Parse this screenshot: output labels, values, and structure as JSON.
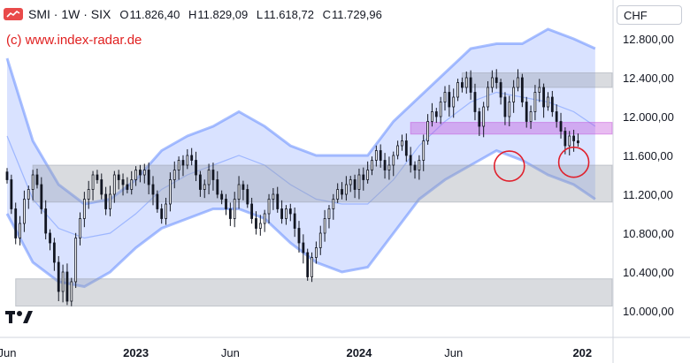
{
  "header": {
    "symbol": "SMI · 1W · SIX",
    "ohlc": [
      {
        "k": "O",
        "v": "11.826,40"
      },
      {
        "k": "H",
        "v": "11.829,09"
      },
      {
        "k": "L",
        "v": "11.618,72"
      },
      {
        "k": "C",
        "v": "11.729,96"
      }
    ]
  },
  "watermark": "(c) www.index-radar.de",
  "currency": "CHF",
  "chart_data": {
    "type": "candlestick",
    "x_ticks": [
      {
        "label": "Jun",
        "t": 0
      },
      {
        "label": "2023",
        "t": 30
      },
      {
        "label": "Jun",
        "t": 52
      },
      {
        "label": "2024",
        "t": 82
      },
      {
        "label": "Jun",
        "t": 104
      },
      {
        "label": "202",
        "t": 134
      }
    ],
    "y_ticks": [
      {
        "label": "12.800,00",
        "v": 12800
      },
      {
        "label": "12.400,00",
        "v": 12400
      },
      {
        "label": "12.000,00",
        "v": 12000
      },
      {
        "label": "11.600,00",
        "v": 11600
      },
      {
        "label": "11.200,00",
        "v": 11200
      },
      {
        "label": "10.800,00",
        "v": 10800
      },
      {
        "label": "10.400,00",
        "v": 10400
      },
      {
        "label": "10.000,00",
        "v": 10000
      }
    ],
    "ylim": [
      9900,
      13050
    ],
    "zones": [
      {
        "from_t": 6,
        "to_t": 143,
        "low": 11120,
        "high": 11500,
        "color": "#9aa0aa"
      },
      {
        "from_t": 2,
        "to_t": 143,
        "low": 10050,
        "high": 10330,
        "color": "#9aa0aa"
      },
      {
        "from_t": 106,
        "to_t": 143,
        "low": 12300,
        "high": 12450,
        "color": "#9aa0aa"
      },
      {
        "from_t": 94,
        "to_t": 143,
        "low": 11820,
        "high": 11940,
        "color": "#c34fd9"
      }
    ],
    "circles": [
      {
        "t": 117,
        "v": 11490
      },
      {
        "t": 132,
        "v": 11530
      }
    ],
    "bands": {
      "t": [
        0,
        6,
        12,
        18,
        24,
        30,
        36,
        42,
        48,
        54,
        60,
        66,
        72,
        78,
        84,
        90,
        96,
        102,
        108,
        114,
        120,
        126,
        132,
        137
      ],
      "upper": [
        12600,
        11750,
        11300,
        11100,
        11150,
        11350,
        11650,
        11800,
        11900,
        12050,
        11900,
        11700,
        11600,
        11600,
        11600,
        11950,
        12200,
        12450,
        12700,
        12750,
        12750,
        12900,
        12800,
        12700
      ],
      "mid": [
        11800,
        11150,
        10850,
        10750,
        10800,
        11000,
        11250,
        11400,
        11500,
        11600,
        11500,
        11300,
        11150,
        11100,
        11100,
        11350,
        11700,
        11950,
        12150,
        12250,
        12200,
        12150,
        12050,
        11900
      ],
      "lower": [
        11000,
        10500,
        10300,
        10250,
        10400,
        10650,
        10850,
        10950,
        11050,
        11050,
        10950,
        10700,
        10500,
        10400,
        10450,
        10800,
        11150,
        11350,
        11500,
        11650,
        11550,
        11400,
        11300,
        11150
      ]
    },
    "closes": [
      11350,
      11050,
      10750,
      10900,
      11150,
      11250,
      11400,
      11300,
      11050,
      10800,
      10700,
      10500,
      10200,
      10400,
      10100,
      10300,
      10750,
      10950,
      11150,
      11250,
      11400,
      11350,
      11200,
      11050,
      11200,
      11400,
      11350,
      11300,
      11250,
      11350,
      11450,
      11400,
      11450,
      11300,
      11200,
      11050,
      10950,
      11100,
      11350,
      11450,
      11550,
      11500,
      11600,
      11550,
      11400,
      11250,
      11300,
      11450,
      11350,
      11200,
      11150,
      11050,
      10950,
      11150,
      11300,
      11250,
      11100,
      10950,
      10850,
      10900,
      11000,
      11150,
      11200,
      11050,
      10950,
      11050,
      11000,
      10850,
      10700,
      10600,
      10350,
      10550,
      10650,
      10800,
      10950,
      11050,
      11150,
      11250,
      11200,
      11300,
      11350,
      11250,
      11400,
      11350,
      11450,
      11550,
      11650,
      11550,
      11450,
      11500,
      11600,
      11700,
      11750,
      11600,
      11500,
      11450,
      11550,
      11750,
      11950,
      12050,
      12000,
      12150,
      12250,
      12100,
      12200,
      12350,
      12300,
      12400,
      12250,
      12050,
      11900,
      12100,
      12300,
      12400,
      12350,
      12200,
      12000,
      12150,
      12300,
      12400,
      12150,
      11950,
      12050,
      12250,
      12300,
      12100,
      12200,
      12050,
      11950,
      11850,
      11700,
      11800,
      11750,
      11730
    ]
  }
}
